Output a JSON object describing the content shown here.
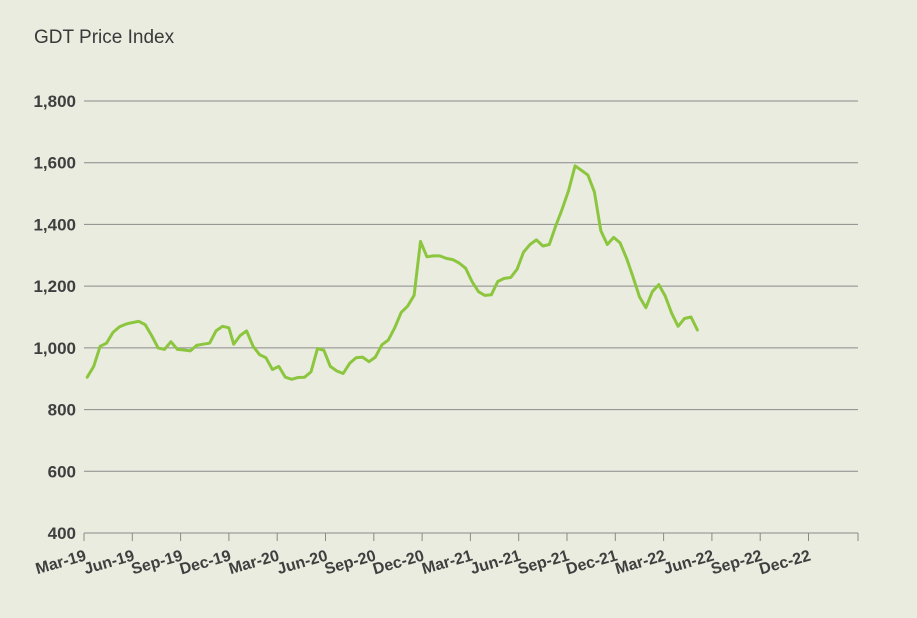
{
  "colors": {
    "background": "#e9ecdf",
    "line": "#8cc63f",
    "grid": "#8a8a8a",
    "text": "#3f3f3f"
  },
  "chart_data": {
    "type": "line",
    "title": "GDT Price Index",
    "xlabel": "",
    "ylabel": "",
    "ylim": [
      400,
      1800
    ],
    "yticks": [
      "400",
      "600",
      "800",
      "1,000",
      "1,200",
      "1,400",
      "1,600",
      "1,800"
    ],
    "ytick_values": [
      400,
      600,
      800,
      1000,
      1200,
      1400,
      1600,
      1800
    ],
    "x_range_months": [
      0,
      47
    ],
    "xticks": [
      {
        "label": "Mar-19",
        "month": 0
      },
      {
        "label": "Jun-19",
        "month": 3
      },
      {
        "label": "Sep-19",
        "month": 6
      },
      {
        "label": "Dec-19",
        "month": 9
      },
      {
        "label": "Mar-20",
        "month": 12
      },
      {
        "label": "Jun-20",
        "month": 15
      },
      {
        "label": "Sep-20",
        "month": 18
      },
      {
        "label": "Dec-20",
        "month": 21
      },
      {
        "label": "Mar-21",
        "month": 24
      },
      {
        "label": "Jun-21",
        "month": 27
      },
      {
        "label": "Sep-21",
        "month": 30
      },
      {
        "label": "Dec-21",
        "month": 33
      },
      {
        "label": "Mar-22",
        "month": 36
      },
      {
        "label": "Jun-22",
        "month": 39
      },
      {
        "label": "Sep-22",
        "month": 42
      },
      {
        "label": "Dec-22",
        "month": 45
      }
    ],
    "grid": true,
    "series": [
      {
        "name": "GDT Price Index",
        "points": [
          [
            0.2,
            905
          ],
          [
            0.6,
            940
          ],
          [
            1.0,
            1005
          ],
          [
            1.4,
            1015
          ],
          [
            1.8,
            1050
          ],
          [
            2.2,
            1068
          ],
          [
            2.6,
            1077
          ],
          [
            3.0,
            1082
          ],
          [
            3.4,
            1086
          ],
          [
            3.8,
            1075
          ],
          [
            4.2,
            1040
          ],
          [
            4.6,
            1000
          ],
          [
            5.0,
            995
          ],
          [
            5.4,
            1020
          ],
          [
            5.8,
            995
          ],
          [
            6.2,
            993
          ],
          [
            6.6,
            990
          ],
          [
            7.0,
            1008
          ],
          [
            7.4,
            1012
          ],
          [
            7.8,
            1015
          ],
          [
            8.2,
            1055
          ],
          [
            8.6,
            1070
          ],
          [
            9.0,
            1065
          ],
          [
            9.3,
            1012
          ],
          [
            9.7,
            1040
          ],
          [
            10.1,
            1055
          ],
          [
            10.5,
            1005
          ],
          [
            10.9,
            978
          ],
          [
            11.3,
            968
          ],
          [
            11.7,
            930
          ],
          [
            12.1,
            940
          ],
          [
            12.5,
            905
          ],
          [
            12.9,
            898
          ],
          [
            13.3,
            904
          ],
          [
            13.7,
            905
          ],
          [
            14.1,
            922
          ],
          [
            14.5,
            998
          ],
          [
            14.9,
            992
          ],
          [
            15.3,
            940
          ],
          [
            15.7,
            925
          ],
          [
            16.1,
            917
          ],
          [
            16.5,
            950
          ],
          [
            16.9,
            968
          ],
          [
            17.3,
            970
          ],
          [
            17.7,
            955
          ],
          [
            18.1,
            970
          ],
          [
            18.5,
            1010
          ],
          [
            18.9,
            1025
          ],
          [
            19.3,
            1065
          ],
          [
            19.7,
            1115
          ],
          [
            20.1,
            1135
          ],
          [
            20.5,
            1170
          ],
          [
            20.9,
            1345
          ],
          [
            21.3,
            1295
          ],
          [
            21.7,
            1298
          ],
          [
            22.1,
            1298
          ],
          [
            22.5,
            1290
          ],
          [
            22.9,
            1286
          ],
          [
            23.3,
            1275
          ],
          [
            23.7,
            1258
          ],
          [
            24.1,
            1215
          ],
          [
            24.5,
            1182
          ],
          [
            24.9,
            1170
          ],
          [
            25.3,
            1172
          ],
          [
            25.7,
            1215
          ],
          [
            26.1,
            1225
          ],
          [
            26.5,
            1228
          ],
          [
            26.9,
            1255
          ],
          [
            27.3,
            1310
          ],
          [
            27.7,
            1335
          ],
          [
            28.1,
            1350
          ],
          [
            28.5,
            1330
          ],
          [
            28.9,
            1335
          ],
          [
            29.3,
            1395
          ],
          [
            29.7,
            1450
          ],
          [
            30.1,
            1510
          ],
          [
            30.5,
            1590
          ],
          [
            30.9,
            1575
          ],
          [
            31.3,
            1560
          ],
          [
            31.7,
            1505
          ],
          [
            32.1,
            1380
          ],
          [
            32.5,
            1335
          ],
          [
            32.9,
            1358
          ],
          [
            33.3,
            1340
          ],
          [
            33.7,
            1290
          ],
          [
            34.1,
            1230
          ],
          [
            34.5,
            1165
          ],
          [
            34.9,
            1130
          ],
          [
            35.3,
            1182
          ],
          [
            35.7,
            1205
          ],
          [
            36.1,
            1168
          ],
          [
            36.5,
            1112
          ],
          [
            36.9,
            1070
          ],
          [
            37.3,
            1095
          ],
          [
            37.7,
            1100
          ],
          [
            38.1,
            1058
          ]
        ]
      }
    ]
  }
}
